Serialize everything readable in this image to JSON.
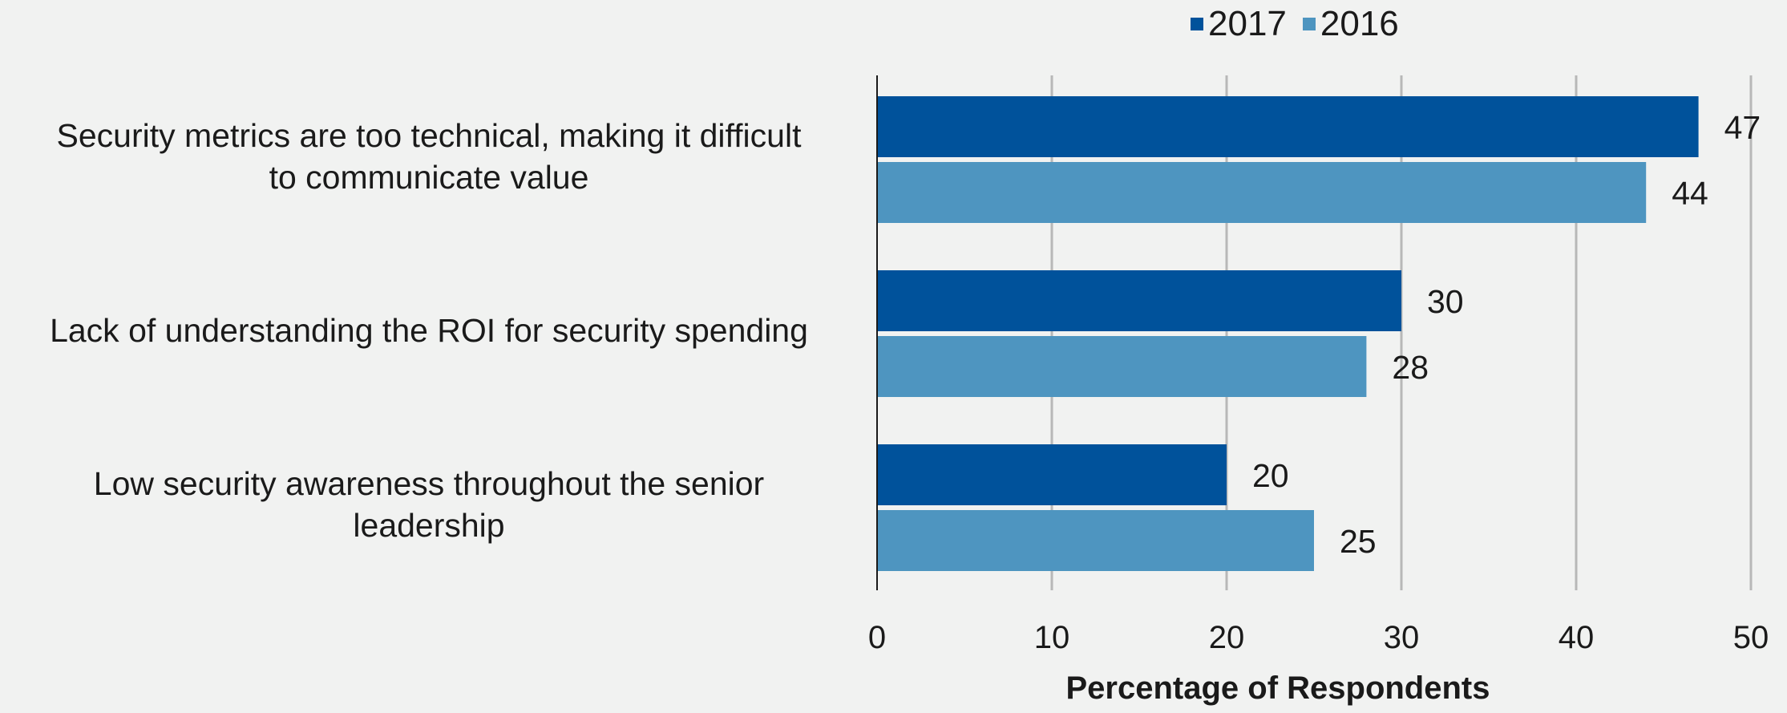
{
  "chart_data": {
    "type": "bar",
    "orientation": "horizontal",
    "categories": [
      "Security metrics are too technical, making it difficult to communicate value",
      "Lack of understanding the ROI for security spending",
      "Low security awareness throughout the senior leadership"
    ],
    "category_lines": [
      [
        "Security metrics are too technical, making it difficult",
        "to communicate value"
      ],
      [
        "Lack of understanding the ROI for security spending"
      ],
      [
        "Low security awareness throughout the senior",
        "leadership"
      ]
    ],
    "series": [
      {
        "name": "2017",
        "color": "#00529b",
        "values": [
          47,
          30,
          20
        ]
      },
      {
        "name": "2016",
        "color": "#4e95c0",
        "values": [
          44,
          28,
          25
        ]
      }
    ],
    "xlabel": "Percentage of Respondents",
    "ylabel": "",
    "xlim": [
      0,
      50
    ],
    "xticks": [
      0,
      10,
      20,
      30,
      40,
      50
    ],
    "grid": "vertical",
    "legend_position": "top"
  }
}
